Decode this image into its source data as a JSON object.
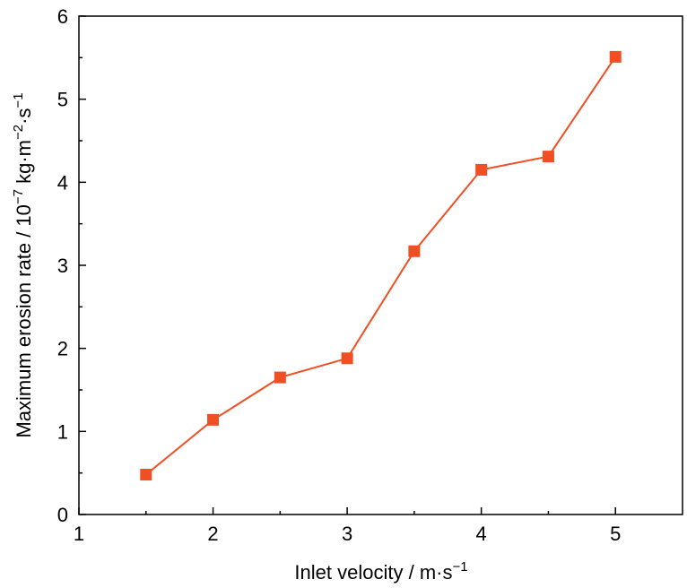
{
  "chart_data": {
    "type": "line",
    "title": "",
    "xlabel": "Inlet velocity / m·s",
    "xlabel_sup": "−1",
    "ylabel_parts": [
      {
        "text": "Maximum erosion rate / 10",
        "sup": false
      },
      {
        "text": "−7",
        "sup": true
      },
      {
        "text": " kg·m",
        "sup": false
      },
      {
        "text": "−2",
        "sup": true
      },
      {
        "text": "·s",
        "sup": false
      },
      {
        "text": "−1",
        "sup": true
      }
    ],
    "xlim": [
      1,
      5.5
    ],
    "ylim": [
      0,
      6
    ],
    "x_ticks": [
      1,
      2,
      3,
      4,
      5
    ],
    "x_minor_ticks": [
      1.5,
      2.5,
      3.5,
      4.5
    ],
    "y_ticks": [
      0,
      1,
      2,
      3,
      4,
      5,
      6
    ],
    "y_minor_ticks": [
      0.5,
      1.5,
      2.5,
      3.5,
      4.5,
      5.5
    ],
    "grid": false,
    "legend": "none",
    "series": [
      {
        "marker": "square",
        "color": "#f04e23",
        "x": [
          1.5,
          2.0,
          2.5,
          3.0,
          3.5,
          4.0,
          4.5,
          5.0
        ],
        "y": [
          0.48,
          1.14,
          1.65,
          1.88,
          3.17,
          4.15,
          4.31,
          5.51
        ]
      }
    ]
  }
}
